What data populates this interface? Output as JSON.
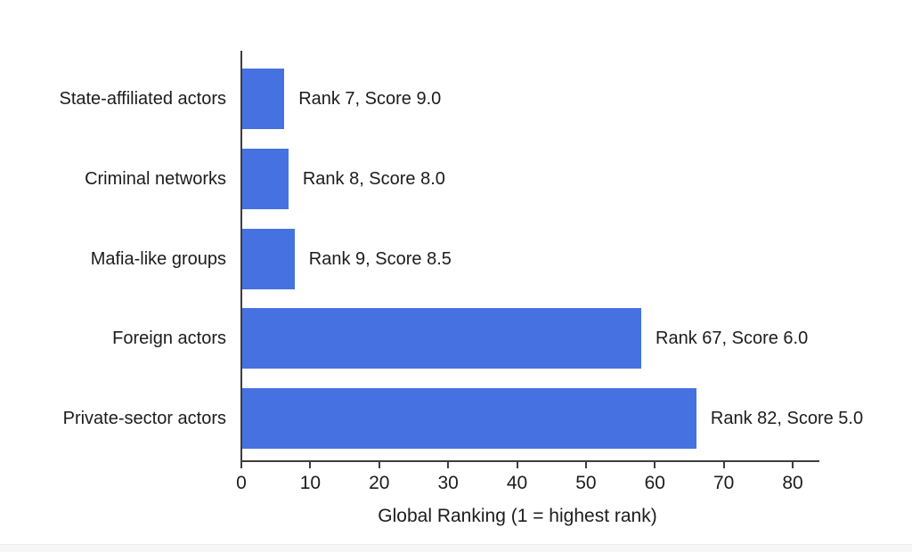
{
  "chart_data": {
    "type": "bar",
    "orientation": "horizontal",
    "title": "",
    "xlabel": "Global Ranking (1 = highest rank)",
    "ylabel": "",
    "x_ticks": [
      "0",
      "10",
      "20",
      "30",
      "40",
      "50",
      "60",
      "70",
      "80"
    ],
    "xlim": [
      0,
      84
    ],
    "grid": false,
    "legend": "none",
    "categories": [
      "State-affiliated actors",
      "Criminal networks",
      "Mafia-like groups",
      "Foreign actors",
      "Private-sector actors"
    ],
    "bars": [
      {
        "category": "State-affiliated actors",
        "rank": 7,
        "score": 9.0,
        "annotation": "Rank 7, Score 9.0",
        "bar_length_axis_units": 6.1
      },
      {
        "category": "Criminal networks",
        "rank": 8,
        "score": 8.0,
        "annotation": "Rank 8, Score 8.0",
        "bar_length_axis_units": 6.7
      },
      {
        "category": "Mafia-like groups",
        "rank": 9,
        "score": 8.5,
        "annotation": "Rank 9, Score 8.5",
        "bar_length_axis_units": 7.6
      },
      {
        "category": "Foreign actors",
        "rank": 67,
        "score": 6.0,
        "annotation": "Rank 67, Score 6.0",
        "bar_length_axis_units": 57.9
      },
      {
        "category": "Private-sector actors",
        "rank": 82,
        "score": 5.0,
        "annotation": "Rank 82, Score 5.0",
        "bar_length_axis_units": 65.9
      }
    ],
    "colors": {
      "bar": "#4671e1",
      "axis": "#3d3d3d",
      "text": "#1c1c1c",
      "footer_strip": "#f6f6f6",
      "background": "#ffffff"
    }
  }
}
